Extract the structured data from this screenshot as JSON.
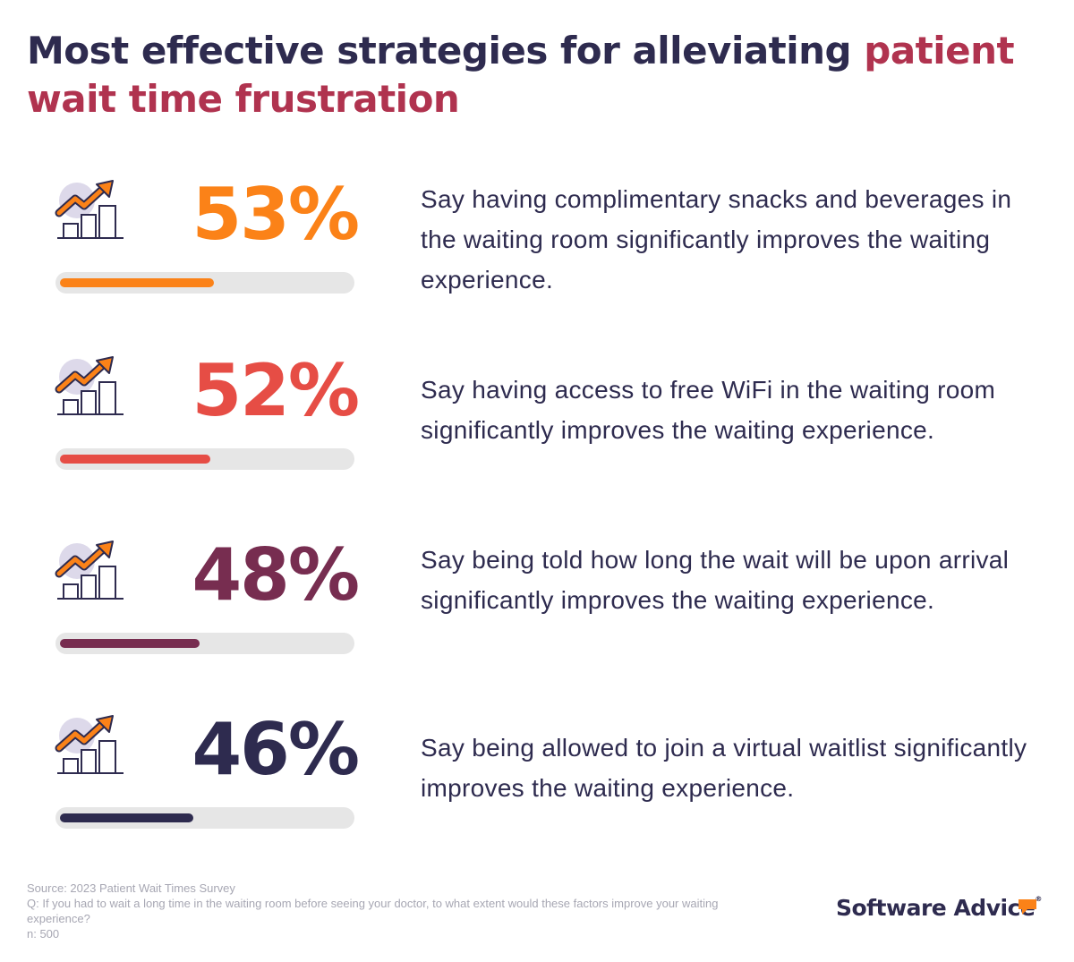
{
  "title": {
    "part1": "Most effective strategies for alleviating ",
    "part2": "patient wait time frustration"
  },
  "colors": {
    "title_dark": "#2e2b4f",
    "title_accent": "#b0334f",
    "track": "#e6e6e6"
  },
  "chart_data": {
    "type": "bar",
    "title": "Most effective strategies for alleviating patient wait time frustration",
    "unit": "%",
    "ylim": [
      0,
      100
    ],
    "series": [
      {
        "value": 53,
        "label": "53%",
        "color": "#fb8218",
        "description": "Say having complimentary snacks and beverages in the waiting room significantly improves the waiting experience."
      },
      {
        "value": 52,
        "label": "52%",
        "color": "#e64d45",
        "description": "Say having access to free WiFi in the waiting room significantly improves the waiting experience."
      },
      {
        "value": 48,
        "label": "48%",
        "color": "#772d50",
        "description": "Say being told how long the wait will be upon arrival significantly improves the waiting experience."
      },
      {
        "value": 46,
        "label": "46%",
        "color": "#2e2b4f",
        "description": "Say being allowed to join a virtual waitlist significantly improves the waiting experience."
      }
    ]
  },
  "icon_name": "growth-chart-icon",
  "footer": {
    "source": "Source: 2023 Patient Wait Times Survey",
    "question": "Q: If you had to wait a long time in the waiting room before seeing your doctor, to what extent would these factors improve your waiting experience?",
    "n": "n: 500"
  },
  "logo": {
    "text": "Software Advice",
    "reg": "®",
    "mark_color": "#fb8218"
  }
}
